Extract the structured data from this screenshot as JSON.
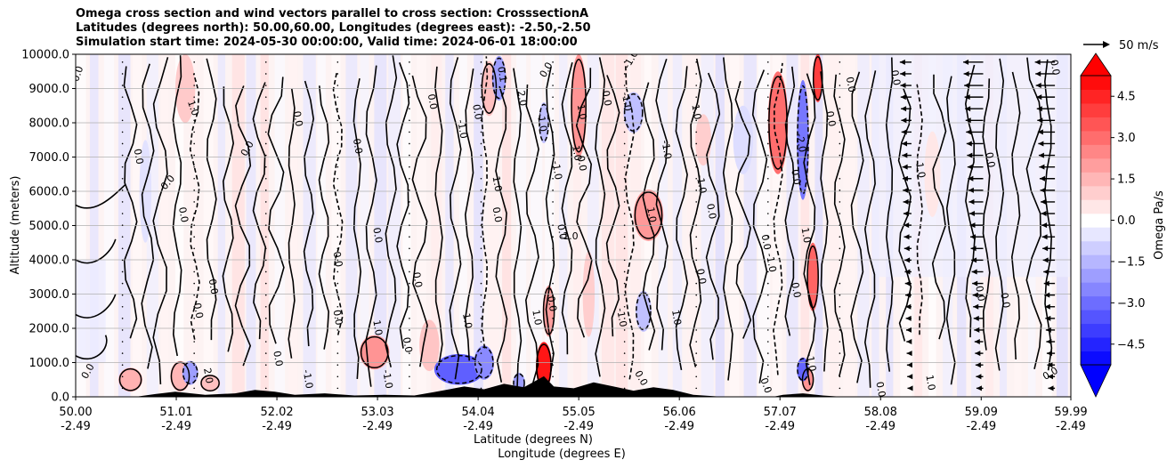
{
  "chart_data": {
    "type": "heatmap",
    "title_lines": [
      "Omega cross section and wind vectors parallel to cross section: CrosssectionA",
      "Latitudes (degrees north): 50.00,60.00, Longitudes (degrees east): -2.50,-2.50",
      "Simulation start time: 2024-05-30 00:00:00, Valid time: 2024-06-01 18:00:00"
    ],
    "ylabel": "Altitude (meters)",
    "xlabel_lines": [
      "Latitude (degrees N)",
      "Longitude (degrees E)"
    ],
    "ylim": [
      0,
      10000
    ],
    "y_ticks": [
      {
        "value": 0,
        "label": "0.0"
      },
      {
        "value": 1000,
        "label": "1000.0"
      },
      {
        "value": 2000,
        "label": "2000.0"
      },
      {
        "value": 3000,
        "label": "3000.0"
      },
      {
        "value": 4000,
        "label": "4000.0"
      },
      {
        "value": 5000,
        "label": "5000.0"
      },
      {
        "value": 6000,
        "label": "6000.0"
      },
      {
        "value": 7000,
        "label": "7000.0"
      },
      {
        "value": 8000,
        "label": "8000.0"
      },
      {
        "value": 9000,
        "label": "9000.0"
      },
      {
        "value": 10000,
        "label": "10000.0"
      }
    ],
    "xlim": [
      50.0,
      59.99
    ],
    "x_ticks": [
      {
        "value": 50.0,
        "lat": "50.00",
        "lon": "-2.49"
      },
      {
        "value": 51.01,
        "lat": "51.01",
        "lon": "-2.49"
      },
      {
        "value": 52.02,
        "lat": "52.02",
        "lon": "-2.49"
      },
      {
        "value": 53.03,
        "lat": "53.03",
        "lon": "-2.49"
      },
      {
        "value": 54.04,
        "lat": "54.04",
        "lon": "-2.49"
      },
      {
        "value": 55.05,
        "lat": "55.05",
        "lon": "-2.49"
      },
      {
        "value": 56.06,
        "lat": "56.06",
        "lon": "-2.49"
      },
      {
        "value": 57.07,
        "lat": "57.07",
        "lon": "-2.49"
      },
      {
        "value": 58.08,
        "lat": "58.08",
        "lon": "-2.49"
      },
      {
        "value": 59.09,
        "lat": "59.09",
        "lon": "-2.49"
      },
      {
        "value": 59.99,
        "lat": "59.99",
        "lon": "-2.49"
      }
    ],
    "grid": "horizontal",
    "colorbar": {
      "label": "Omega Pa/s",
      "range": [
        -5.25,
        5.25
      ],
      "ticks": [
        {
          "value": 4.5,
          "label": "4.5"
        },
        {
          "value": 3.0,
          "label": "3.0"
        },
        {
          "value": 1.5,
          "label": "1.5"
        },
        {
          "value": 0.0,
          "label": "0.0"
        },
        {
          "value": -1.5,
          "label": "−1.5"
        },
        {
          "value": -3.0,
          "label": "−3.0"
        },
        {
          "value": -4.5,
          "label": "−4.5"
        }
      ],
      "colormap": "bwr",
      "extend": "both"
    },
    "quiver_key": {
      "label": "50 m/s"
    },
    "features": {
      "terrain": [
        [
          50.0,
          0
        ],
        [
          50.6,
          0
        ],
        [
          50.8,
          80
        ],
        [
          51.0,
          150
        ],
        [
          51.3,
          60
        ],
        [
          51.6,
          100
        ],
        [
          51.8,
          200
        ],
        [
          52.0,
          150
        ],
        [
          52.2,
          60
        ],
        [
          52.5,
          100
        ],
        [
          52.8,
          40
        ],
        [
          53.1,
          60
        ],
        [
          53.4,
          40
        ],
        [
          53.6,
          140
        ],
        [
          53.9,
          300
        ],
        [
          54.1,
          220
        ],
        [
          54.3,
          380
        ],
        [
          54.5,
          280
        ],
        [
          54.7,
          600
        ],
        [
          54.8,
          300
        ],
        [
          55.0,
          250
        ],
        [
          55.2,
          420
        ],
        [
          55.4,
          300
        ],
        [
          55.6,
          180
        ],
        [
          55.8,
          280
        ],
        [
          56.0,
          200
        ],
        [
          56.2,
          60
        ],
        [
          56.5,
          0
        ],
        [
          57.0,
          0
        ],
        [
          57.1,
          60
        ],
        [
          57.3,
          100
        ],
        [
          57.5,
          40
        ],
        [
          57.7,
          0
        ],
        [
          59.99,
          0
        ]
      ],
      "positive_cells": [
        {
          "x": 50.55,
          "y": 500,
          "w": 0.12,
          "h": 700,
          "v": 1.6
        },
        {
          "x": 51.05,
          "y": 600,
          "w": 0.1,
          "h": 900,
          "v": 1.5
        },
        {
          "x": 51.35,
          "y": 400,
          "w": 0.1,
          "h": 500,
          "v": 1.3
        },
        {
          "x": 51.1,
          "y": 9000,
          "w": 0.1,
          "h": 2000,
          "v": 1.1
        },
        {
          "x": 53.0,
          "y": 1300,
          "w": 0.15,
          "h": 1000,
          "v": 2.2
        },
        {
          "x": 53.55,
          "y": 1500,
          "w": 0.1,
          "h": 1500,
          "v": 1.2
        },
        {
          "x": 54.15,
          "y": 9000,
          "w": 0.08,
          "h": 1600,
          "v": 1.3
        },
        {
          "x": 54.7,
          "y": 900,
          "w": 0.08,
          "h": 1400,
          "v": 4.8
        },
        {
          "x": 54.75,
          "y": 2500,
          "w": 0.06,
          "h": 1500,
          "v": 2.0
        },
        {
          "x": 55.05,
          "y": 8500,
          "w": 0.08,
          "h": 3000,
          "v": 2.2
        },
        {
          "x": 55.15,
          "y": 3000,
          "w": 0.06,
          "h": 2500,
          "v": 1.0
        },
        {
          "x": 55.75,
          "y": 5300,
          "w": 0.15,
          "h": 1500,
          "v": 2.1
        },
        {
          "x": 57.05,
          "y": 8000,
          "w": 0.1,
          "h": 3000,
          "v": 3.0
        },
        {
          "x": 57.4,
          "y": 3500,
          "w": 0.06,
          "h": 2000,
          "v": 3.2
        },
        {
          "x": 57.45,
          "y": 9300,
          "w": 0.05,
          "h": 1400,
          "v": 4.0
        },
        {
          "x": 57.35,
          "y": 500,
          "w": 0.06,
          "h": 700,
          "v": 2.2
        },
        {
          "x": 56.3,
          "y": 7500,
          "w": 0.08,
          "h": 1500,
          "v": 1.0
        },
        {
          "x": 58.6,
          "y": 6500,
          "w": 0.08,
          "h": 2500,
          "v": 0.5
        }
      ],
      "negative_cells": [
        {
          "x": 51.15,
          "y": 700,
          "w": 0.08,
          "h": 700,
          "v": -2.0
        },
        {
          "x": 53.85,
          "y": 800,
          "w": 0.25,
          "h": 900,
          "v": -3.3
        },
        {
          "x": 54.1,
          "y": 1000,
          "w": 0.1,
          "h": 1000,
          "v": -2.4
        },
        {
          "x": 54.25,
          "y": 9300,
          "w": 0.07,
          "h": 1300,
          "v": -2.0
        },
        {
          "x": 54.7,
          "y": 8000,
          "w": 0.05,
          "h": 1200,
          "v": -1.3
        },
        {
          "x": 55.6,
          "y": 8300,
          "w": 0.1,
          "h": 1200,
          "v": -1.3
        },
        {
          "x": 55.7,
          "y": 2500,
          "w": 0.08,
          "h": 1200,
          "v": -1.3
        },
        {
          "x": 57.3,
          "y": 7500,
          "w": 0.06,
          "h": 3500,
          "v": -2.8
        },
        {
          "x": 57.3,
          "y": 800,
          "w": 0.06,
          "h": 700,
          "v": -3.2
        },
        {
          "x": 54.45,
          "y": 400,
          "w": 0.06,
          "h": 600,
          "v": -2.0
        },
        {
          "x": 50.7,
          "y": 6000,
          "w": 0.06,
          "h": 3000,
          "v": -0.6
        },
        {
          "x": 56.7,
          "y": 7500,
          "w": 0.1,
          "h": 2000,
          "v": -0.7
        }
      ],
      "contour_labels": [
        {
          "text": "0.0",
          "x": 50.05,
          "y": 9400,
          "rot": -70
        },
        {
          "text": "1.0",
          "x": 51.15,
          "y": 8400,
          "rot": 70
        },
        {
          "text": "0.0",
          "x": 50.6,
          "y": 7000,
          "rot": 80
        },
        {
          "text": "0.0",
          "x": 50.95,
          "y": 6200,
          "rot": -50
        },
        {
          "text": "0.0",
          "x": 51.05,
          "y": 5300,
          "rot": 80
        },
        {
          "text": "0.0",
          "x": 51.75,
          "y": 7200,
          "rot": -60
        },
        {
          "text": "0.0",
          "x": 52.2,
          "y": 8100,
          "rot": 80
        },
        {
          "text": "0.0",
          "x": 52.8,
          "y": 7300,
          "rot": 80
        },
        {
          "text": "0.0",
          "x": 53.55,
          "y": 8600,
          "rot": 80
        },
        {
          "text": "0.0",
          "x": 51.35,
          "y": 3200,
          "rot": 80
        },
        {
          "text": "0.0",
          "x": 51.2,
          "y": 2500,
          "rot": 80
        },
        {
          "text": "0.0",
          "x": 52.6,
          "y": 2300,
          "rot": 80
        },
        {
          "text": "0.0",
          "x": 53.0,
          "y": 4700,
          "rot": 80
        },
        {
          "text": "0.0",
          "x": 53.4,
          "y": 3400,
          "rot": 80
        },
        {
          "text": "0.0",
          "x": 53.3,
          "y": 1500,
          "rot": 80
        },
        {
          "text": "1.0",
          "x": 53.0,
          "y": 2000,
          "rot": 80
        },
        {
          "text": "0.0",
          "x": 52.6,
          "y": 4000,
          "rot": 80
        },
        {
          "text": "1.0",
          "x": 53.9,
          "y": 2200,
          "rot": 80
        },
        {
          "text": "1.0",
          "x": 54.2,
          "y": 6200,
          "rot": 80
        },
        {
          "text": "0.0",
          "x": 54.2,
          "y": 5300,
          "rot": 80
        },
        {
          "text": "0.1",
          "x": 54.25,
          "y": 9400,
          "rot": 80
        },
        {
          "text": "0.0",
          "x": 54.0,
          "y": 8300,
          "rot": 80
        },
        {
          "text": "-1.0",
          "x": 53.85,
          "y": 7800,
          "rot": 80
        },
        {
          "text": "2.0",
          "x": 54.45,
          "y": 8700,
          "rot": 80
        },
        {
          "text": "-1.0",
          "x": 54.65,
          "y": 8000,
          "rot": 80
        },
        {
          "text": "0.0",
          "x": 54.75,
          "y": 9500,
          "rot": -60
        },
        {
          "text": "1.0",
          "x": 55.05,
          "y": 8300,
          "rot": 80
        },
        {
          "text": "0.0",
          "x": 55.3,
          "y": 8700,
          "rot": 80
        },
        {
          "text": "-1.0",
          "x": 55.5,
          "y": 8600,
          "rot": 80
        },
        {
          "text": "0.0",
          "x": 55.05,
          "y": 6800,
          "rot": 80
        },
        {
          "text": "1.0",
          "x": 55.0,
          "y": 7100,
          "rot": 80
        },
        {
          "text": "-1.0",
          "x": 54.8,
          "y": 6600,
          "rot": 80
        },
        {
          "text": "0.0",
          "x": 54.85,
          "y": 4800,
          "rot": 80
        },
        {
          "text": "-1.0",
          "x": 54.95,
          "y": 4600,
          "rot": 0
        },
        {
          "text": "0.0",
          "x": 54.75,
          "y": 2700,
          "rot": 80
        },
        {
          "text": "1.0",
          "x": 54.6,
          "y": 2300,
          "rot": 80
        },
        {
          "text": "-1.0",
          "x": 55.45,
          "y": 2300,
          "rot": 80
        },
        {
          "text": "1.0",
          "x": 56.0,
          "y": 2300,
          "rot": 80
        },
        {
          "text": "0.0",
          "x": 56.25,
          "y": 3500,
          "rot": 80
        },
        {
          "text": "-1.0",
          "x": 56.25,
          "y": 6200,
          "rot": 80
        },
        {
          "text": "0.0",
          "x": 56.35,
          "y": 5400,
          "rot": 80
        },
        {
          "text": "1.0",
          "x": 56.2,
          "y": 8300,
          "rot": 80
        },
        {
          "text": "-1.0",
          "x": 55.9,
          "y": 7200,
          "rot": 80
        },
        {
          "text": "-1.0",
          "x": 55.6,
          "y": 9800,
          "rot": -60
        },
        {
          "text": "1.0",
          "x": 55.75,
          "y": 5300,
          "rot": 80
        },
        {
          "text": "0.0",
          "x": 56.9,
          "y": 4500,
          "rot": 80
        },
        {
          "text": "-1.0",
          "x": 56.95,
          "y": 3900,
          "rot": 80
        },
        {
          "text": "0.0",
          "x": 57.2,
          "y": 3100,
          "rot": 80
        },
        {
          "text": "0.0",
          "x": 57.2,
          "y": 6400,
          "rot": 80
        },
        {
          "text": "-2.0",
          "x": 57.25,
          "y": 7400,
          "rot": 80
        },
        {
          "text": "1.0",
          "x": 57.3,
          "y": 4700,
          "rot": 80
        },
        {
          "text": "0.0",
          "x": 57.55,
          "y": 8100,
          "rot": 80
        },
        {
          "text": "0.0",
          "x": 57.75,
          "y": 9100,
          "rot": 80
        },
        {
          "text": "0.0",
          "x": 58.2,
          "y": 9300,
          "rot": 80
        },
        {
          "text": "1.0",
          "x": 58.45,
          "y": 6600,
          "rot": 80
        },
        {
          "text": "0.0",
          "x": 59.15,
          "y": 6900,
          "rot": 80
        },
        {
          "text": "0.0",
          "x": 59.05,
          "y": 3000,
          "rot": 80
        },
        {
          "text": "0.0",
          "x": 59.3,
          "y": 2800,
          "rot": 80
        },
        {
          "text": "0.0",
          "x": 59.8,
          "y": 9600,
          "rot": 80
        },
        {
          "text": "0.0",
          "x": 50.15,
          "y": 700,
          "rot": -60
        },
        {
          "text": "2.0",
          "x": 51.3,
          "y": 600,
          "rot": 80
        },
        {
          "text": "-1.0",
          "x": 52.3,
          "y": 500,
          "rot": 80
        },
        {
          "text": "0.0",
          "x": 52.0,
          "y": 1100,
          "rot": 80
        },
        {
          "text": "-1.0",
          "x": 53.1,
          "y": 500,
          "rot": 80
        },
        {
          "text": "0.0",
          "x": 55.65,
          "y": 500,
          "rot": 60
        },
        {
          "text": "0.0",
          "x": 56.9,
          "y": 300,
          "rot": 70
        },
        {
          "text": "-1.0",
          "x": 57.35,
          "y": 1000,
          "rot": 80
        },
        {
          "text": "1.0",
          "x": 58.55,
          "y": 400,
          "rot": 80
        },
        {
          "text": "0.0",
          "x": 58.05,
          "y": 200,
          "rot": 80
        },
        {
          "text": "0.0",
          "x": 59.8,
          "y": 600,
          "rot": -30
        }
      ]
    }
  }
}
